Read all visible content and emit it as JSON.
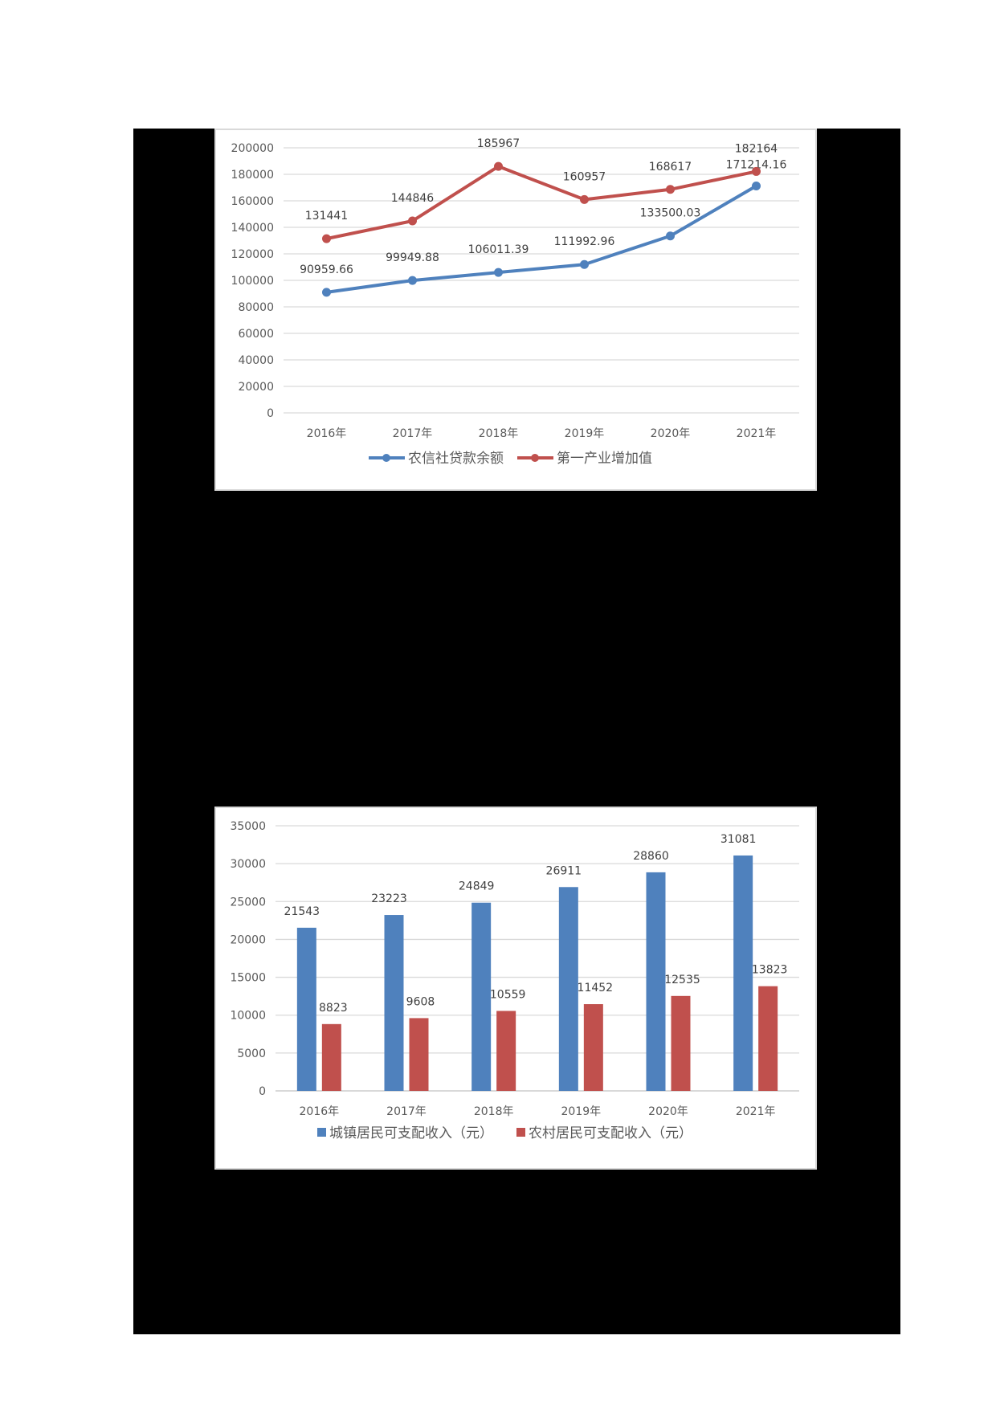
{
  "chart_data": [
    {
      "type": "line",
      "title": "",
      "xlabel": "",
      "ylabel": "",
      "categories": [
        "2016年",
        "2017年",
        "2018年",
        "2019年",
        "2020年",
        "2021年"
      ],
      "series": [
        {
          "name": "农信社贷款余额",
          "color": "#4f81bd",
          "values": [
            90959.66,
            99949.88,
            106011.39,
            111992.96,
            133500.03,
            171214.16
          ],
          "labels": [
            "90959.66",
            "99949.88",
            "106011.39",
            "111992.96",
            "133500.03",
            "171214.16"
          ]
        },
        {
          "name": "第一产业增加值",
          "color": "#c0504d",
          "values": [
            131441,
            144846,
            185967,
            160957,
            168617,
            182164
          ],
          "labels": [
            "131441",
            "144846",
            "185967",
            "160957",
            "168617",
            "182164"
          ]
        }
      ],
      "yticks": [
        "0",
        "20000",
        "40000",
        "60000",
        "80000",
        "100000",
        "120000",
        "140000",
        "160000",
        "180000",
        "200000"
      ],
      "ylim": [
        0,
        200000
      ],
      "grid": true,
      "legend_position": "bottom"
    },
    {
      "type": "bar",
      "title": "",
      "xlabel": "",
      "ylabel": "",
      "categories": [
        "2016年",
        "2017年",
        "2018年",
        "2019年",
        "2020年",
        "2021年"
      ],
      "series": [
        {
          "name": "城镇居民可支配收入（元）",
          "color": "#4f81bd",
          "values": [
            21543,
            23223,
            24849,
            26911,
            28860,
            31081
          ],
          "labels": [
            "21543",
            "23223",
            "24849",
            "26911",
            "28860",
            "31081"
          ]
        },
        {
          "name": "农村居民可支配收入（元）",
          "color": "#c0504d",
          "values": [
            8823,
            9608,
            10559,
            11452,
            12535,
            13823
          ],
          "labels": [
            "8823",
            "9608",
            "10559",
            "11452",
            "12535",
            "13823"
          ]
        }
      ],
      "yticks": [
        "0",
        "5000",
        "10000",
        "15000",
        "20000",
        "25000",
        "30000",
        "35000"
      ],
      "ylim": [
        0,
        35000
      ],
      "grid": true,
      "legend_position": "bottom"
    }
  ]
}
